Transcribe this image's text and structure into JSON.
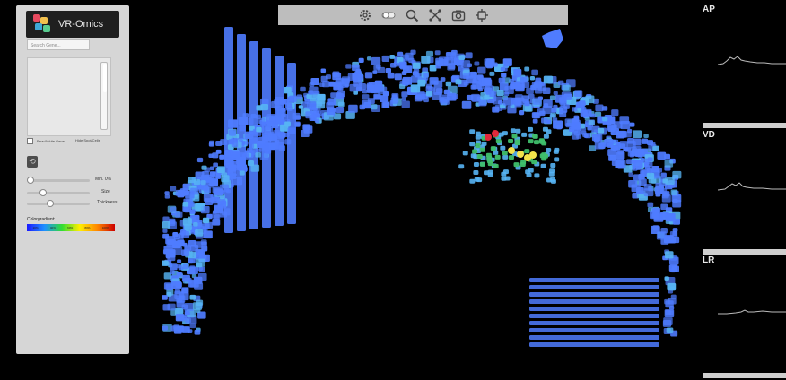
{
  "app": {
    "title": "VR-Omics"
  },
  "panel": {
    "search_placeholder": "Search Gene...",
    "checkbox_left": "Read/Write Gene",
    "checkbox_right": "Hide Spot/Cells",
    "slider_min_label": "Min. 0%",
    "slider_size_label": "Size",
    "slider_thickness_label": "Thickness",
    "colorgradient_label": "Colorgradient:",
    "gradient_ticks": [
      "20%",
      "40%",
      "60%",
      "80%",
      "100%"
    ],
    "slider_min_value": 0,
    "slider_size_value": 0.22,
    "slider_thickness_value": 0.34
  },
  "toolbar": {
    "icons": [
      "gear-icon",
      "toggle-icon",
      "search-icon",
      "cluster-icon",
      "camera-icon",
      "settings-icon"
    ]
  },
  "plots": [
    {
      "label": "AP"
    },
    {
      "label": "VD"
    },
    {
      "label": "LR"
    }
  ],
  "colors": {
    "background": "#000000",
    "spot_blue": "#4f7cff",
    "spot_cyan": "#56b4f4",
    "spot_green": "#3fbf6c",
    "spot_yellow": "#f2e34b",
    "spot_red": "#e0283b"
  }
}
